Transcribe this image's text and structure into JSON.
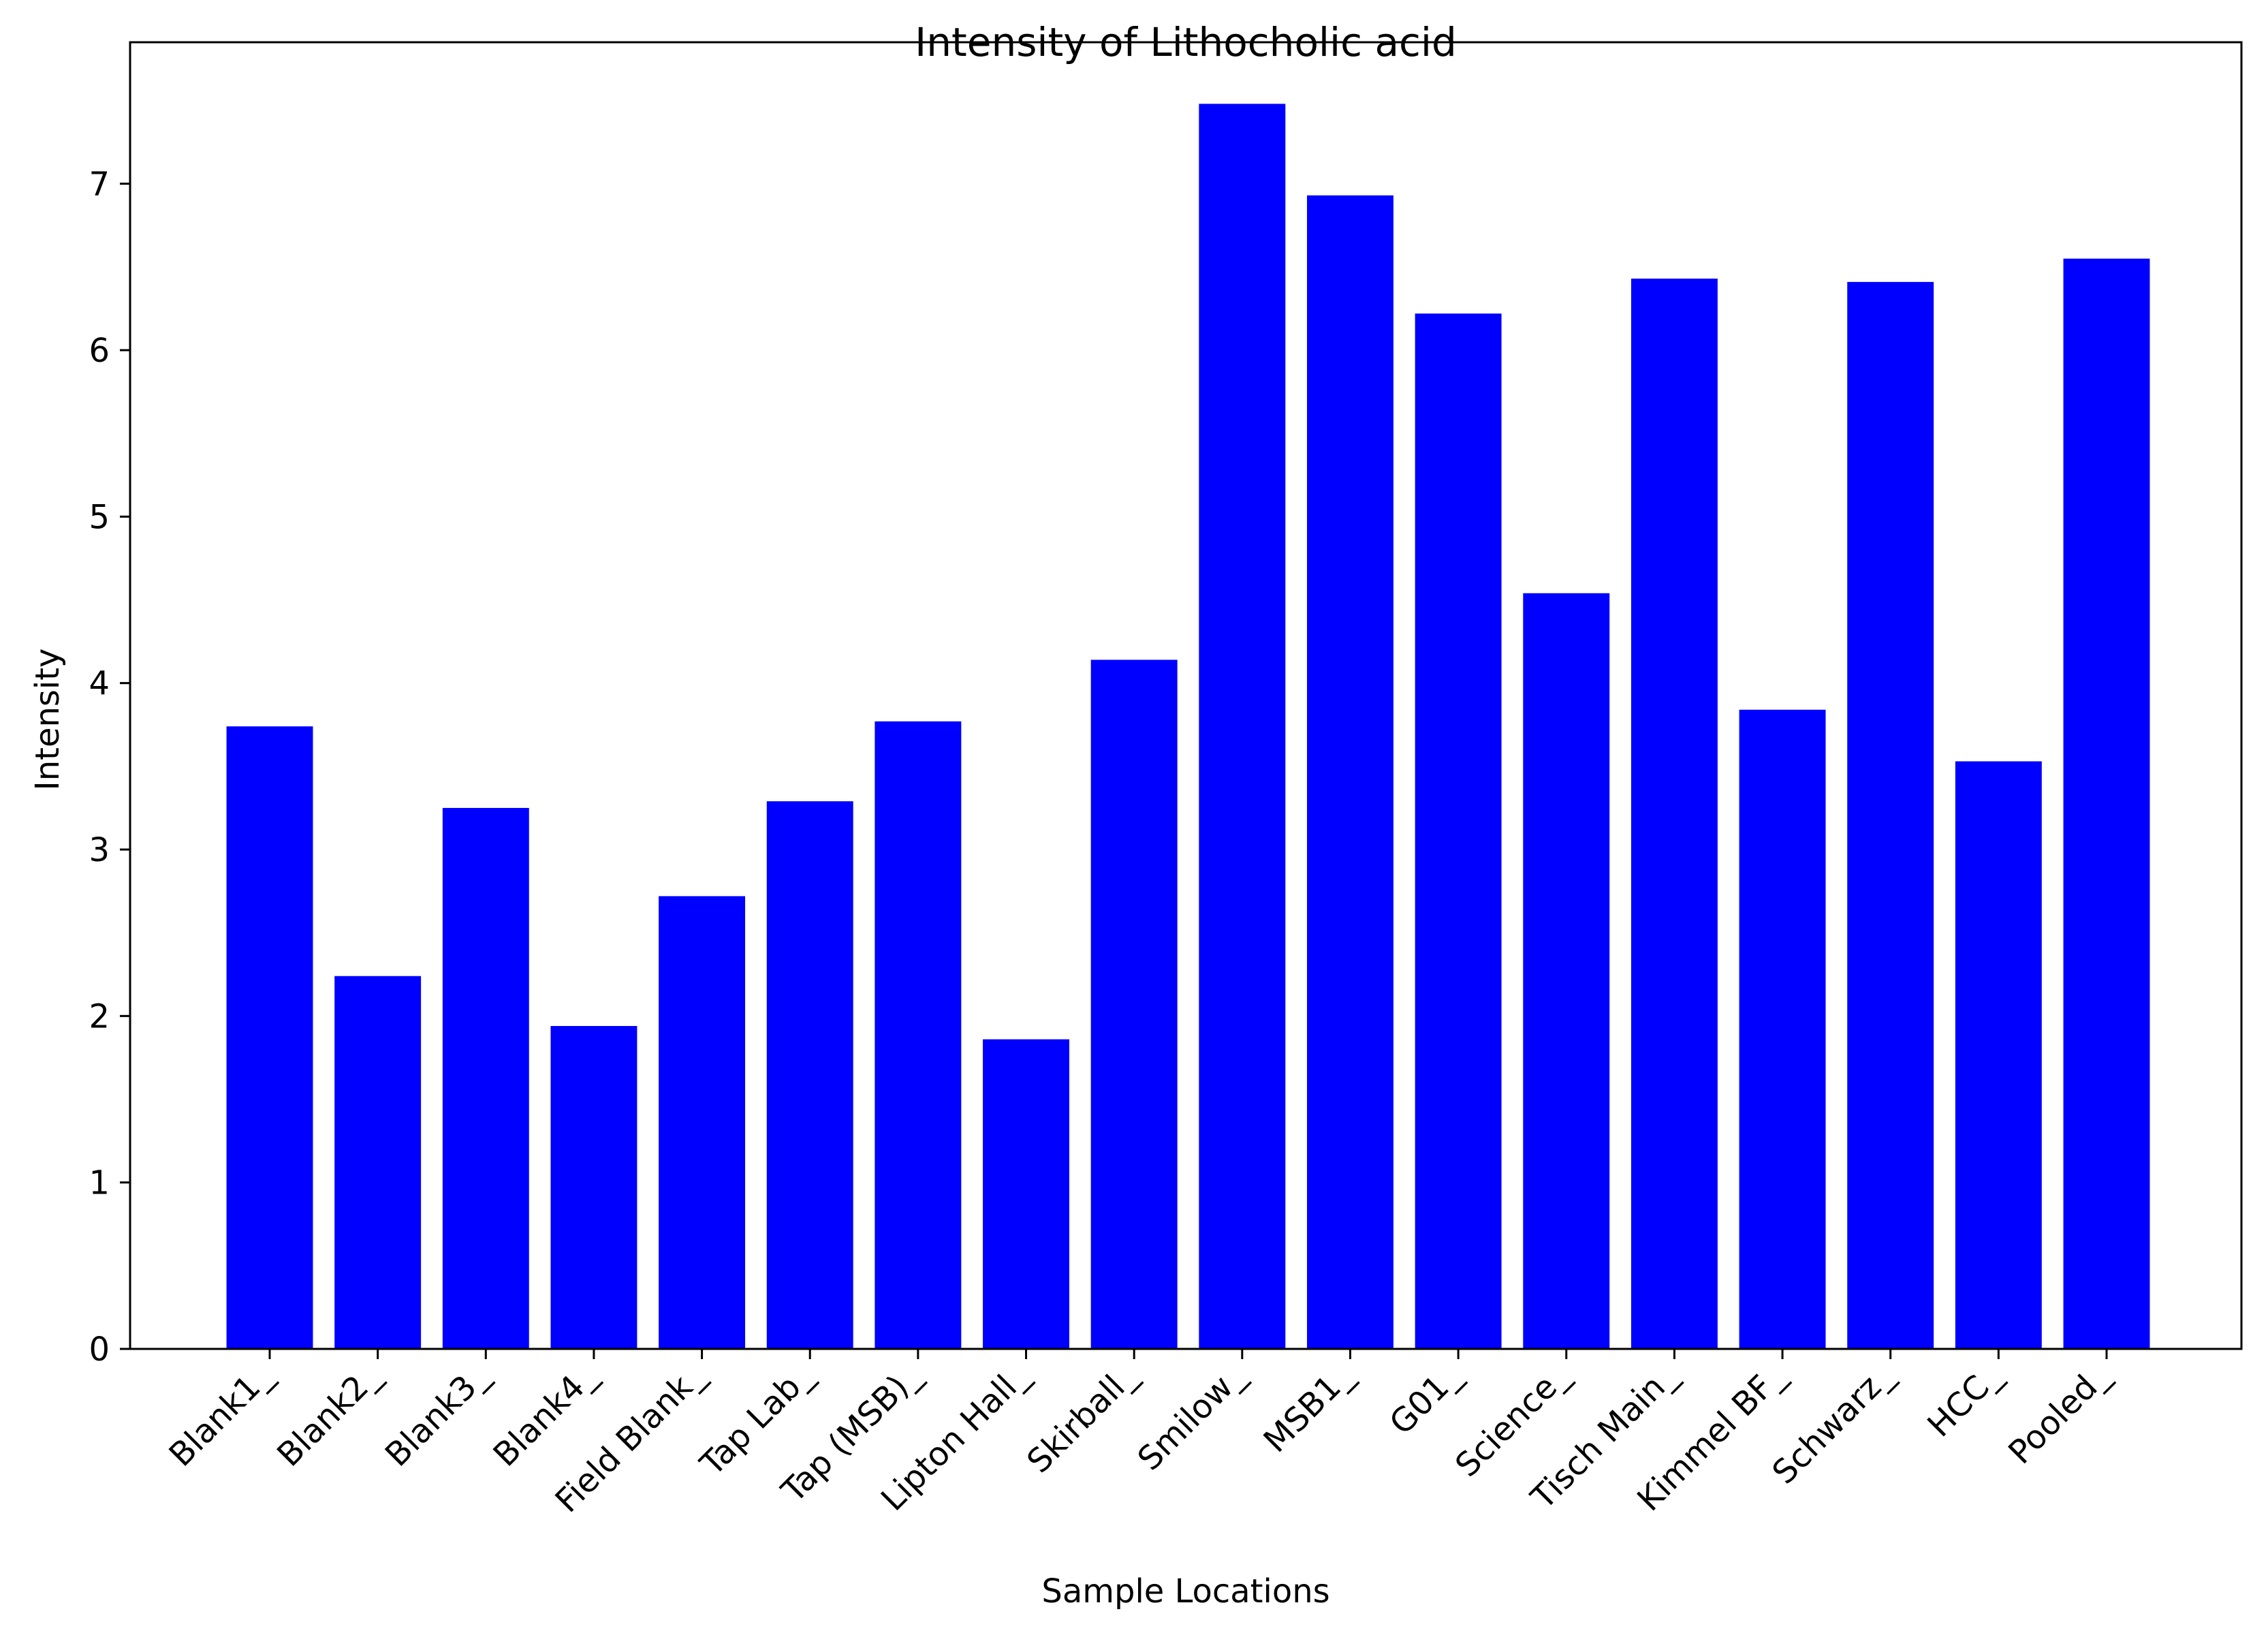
{
  "chart_data": {
    "type": "bar",
    "title": "Intensity of Lithocholic acid",
    "xlabel": "Sample Locations",
    "ylabel": "Intensity",
    "categories": [
      "Blank1_",
      "Blank2_",
      "Blank3_",
      "Blank4_",
      "Field Blank_",
      "Tap Lab_",
      "Tap (MSB)_",
      "Lipton Hall_",
      "Skirball_",
      "Smilow_",
      "MSB1_",
      "G01_",
      "Science_",
      "Tisch Main_",
      "Kimmel BF_",
      "Schwarz_",
      "HCC_",
      "Pooled_"
    ],
    "values": [
      3.74,
      2.24,
      3.25,
      1.94,
      2.72,
      3.29,
      3.77,
      1.86,
      4.14,
      7.48,
      6.93,
      6.22,
      4.54,
      6.43,
      3.84,
      6.41,
      3.53,
      6.55
    ],
    "ylim": [
      0,
      7.85
    ],
    "yticks": [
      0,
      1,
      2,
      3,
      4,
      5,
      6,
      7
    ],
    "bar_color": "#0000ff",
    "grid": false,
    "legend": "none"
  }
}
